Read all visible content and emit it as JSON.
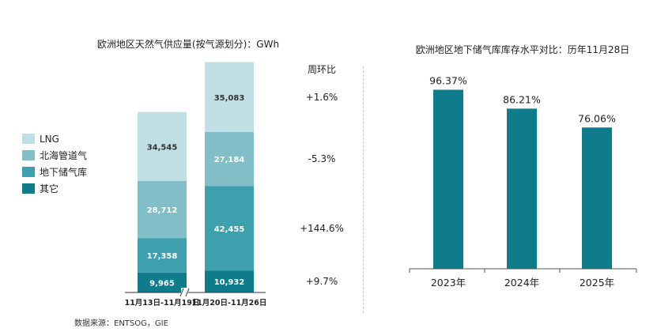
{
  "chart_data": [
    {
      "type": "bar",
      "stacked": true,
      "title": "欧洲地区天然气供应量(按气源划分)：GWh",
      "categories": [
        "11月13日-11月19日",
        "11月20日-11月26日"
      ],
      "series": [
        {
          "name": "其它",
          "values": [
            9965,
            10932
          ],
          "labels": [
            "9,965",
            "10,932"
          ],
          "color": "#0e7c8b"
        },
        {
          "name": "地下储气库",
          "values": [
            17358,
            42455
          ],
          "labels": [
            "17,358",
            "42,455"
          ],
          "color": "#3e9fae"
        },
        {
          "name": "北海管道气",
          "values": [
            28712,
            27184
          ],
          "labels": [
            "28,712",
            "27,184"
          ],
          "color": "#82bec7"
        },
        {
          "name": "LNG",
          "values": [
            34545,
            35083
          ],
          "labels": [
            "34,545",
            "35,083"
          ],
          "color": "#bfdfe4"
        }
      ],
      "wow_header": "周环比",
      "wow_changes": [
        "+9.7%",
        "+144.6%",
        "-5.3%",
        "+1.6%"
      ],
      "axis_break": true,
      "legend_position": "left"
    },
    {
      "type": "bar",
      "title": "欧洲地区地下储气库库存水平对比：历年11月28日",
      "categories": [
        "2023年",
        "2024年",
        "2025年"
      ],
      "values": [
        96.37,
        86.21,
        76.06
      ],
      "value_labels": [
        "96.37%",
        "86.21%",
        "76.06%"
      ],
      "ylim": [
        0,
        100
      ],
      "color": "#0e7c8b"
    }
  ],
  "legend": [
    {
      "label": "LNG",
      "color": "#bfdfe4"
    },
    {
      "label": "北海管道气",
      "color": "#82bec7"
    },
    {
      "label": "地下储气库",
      "color": "#3e9fae"
    },
    {
      "label": "其它",
      "color": "#0e7c8b"
    }
  ],
  "source": "数据来源：ENTSOG，GIE"
}
